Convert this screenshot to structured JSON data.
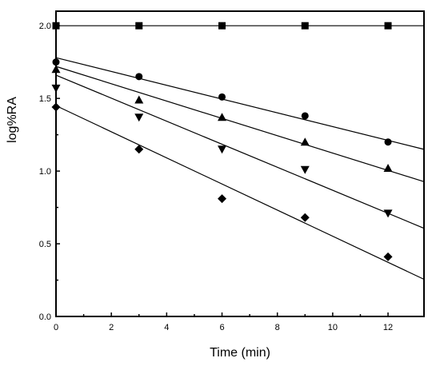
{
  "chart_data": {
    "type": "scatter",
    "title": "",
    "xlabel": "Time (min)",
    "ylabel": "log%RA",
    "xlim": [
      0,
      13.3
    ],
    "ylim": [
      0,
      2.1
    ],
    "xticks": [
      0,
      2,
      4,
      6,
      8,
      10,
      12
    ],
    "yticks": [
      0.0,
      0.5,
      1.0,
      1.5,
      2.0
    ],
    "xtick_labels": [
      "0",
      "2",
      "4",
      "6",
      "8",
      "10",
      "12"
    ],
    "ytick_labels": [
      "0.0",
      "0.5",
      "1.0",
      "1.5",
      "2.0"
    ],
    "grid": false,
    "legend": "none",
    "series": [
      {
        "marker": "square",
        "points": [
          [
            0,
            2.0
          ],
          [
            3,
            2.0
          ],
          [
            6,
            2.0
          ],
          [
            9,
            2.0
          ],
          [
            12,
            2.0
          ]
        ],
        "fit": {
          "intercept": 2.0,
          "slope": 0.0
        }
      },
      {
        "marker": "circle",
        "points": [
          [
            0,
            1.75
          ],
          [
            3,
            1.65
          ],
          [
            6,
            1.51
          ],
          [
            9,
            1.38
          ],
          [
            12,
            1.2
          ]
        ],
        "fit": {
          "intercept": 1.78,
          "slope": -0.0474
        }
      },
      {
        "marker": "triangle-up",
        "points": [
          [
            0,
            1.7
          ],
          [
            3,
            1.49
          ],
          [
            6,
            1.37
          ],
          [
            9,
            1.2
          ],
          [
            12,
            1.02
          ]
        ],
        "fit": {
          "intercept": 1.72,
          "slope": -0.0596
        }
      },
      {
        "marker": "triangle-down",
        "points": [
          [
            0,
            1.57
          ],
          [
            3,
            1.37
          ],
          [
            6,
            1.15
          ],
          [
            9,
            1.01
          ],
          [
            12,
            0.71
          ]
        ],
        "fit": {
          "intercept": 1.66,
          "slope": -0.0792
        }
      },
      {
        "marker": "diamond",
        "points": [
          [
            0,
            1.44
          ],
          [
            3,
            1.15
          ],
          [
            6,
            0.81
          ],
          [
            9,
            0.68
          ],
          [
            12,
            0.41
          ]
        ],
        "fit": {
          "intercept": 1.45,
          "slope": -0.0898
        }
      }
    ]
  }
}
